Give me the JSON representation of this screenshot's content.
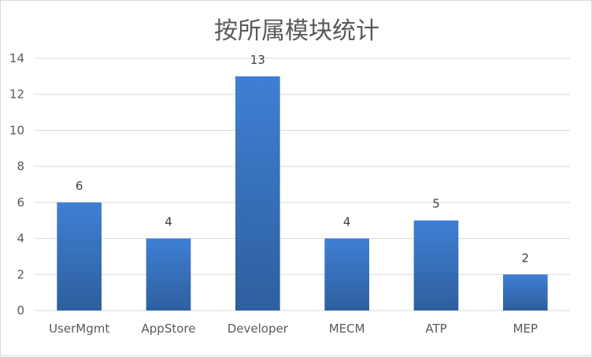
{
  "chart_data": {
    "type": "bar",
    "title": "按所属模块统计",
    "xlabel": "",
    "ylabel": "",
    "categories": [
      "UserMgmt",
      "AppStore",
      "Developer",
      "MECM",
      "ATP",
      "MEP"
    ],
    "values": [
      6,
      4,
      13,
      4,
      5,
      2
    ],
    "ylim": [
      0,
      14
    ],
    "yticks": [
      0,
      2,
      4,
      6,
      8,
      10,
      12,
      14
    ],
    "grid": true,
    "legend": "none",
    "data_labels": true,
    "colors": {
      "bar_top": "#3f7fd4",
      "bar_bottom": "#2e5f9e",
      "grid": "#d9d9d9",
      "text": "#595959"
    }
  }
}
